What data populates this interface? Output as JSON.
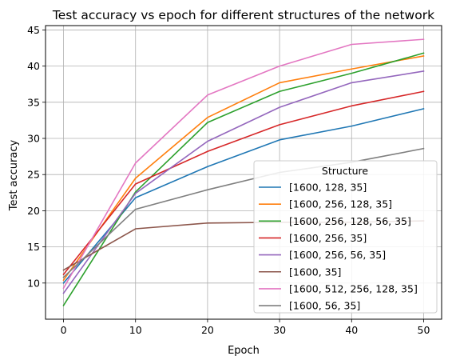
{
  "chart_data": {
    "type": "line",
    "title": "Test accuracy vs epoch for different structures of the network",
    "xlabel": "Epoch",
    "ylabel": "Test accuracy",
    "x": [
      0,
      10,
      20,
      30,
      40,
      50
    ],
    "xticks": [
      "0",
      "10",
      "20",
      "30",
      "40",
      "50"
    ],
    "yticks": [
      "10",
      "15",
      "20",
      "25",
      "30",
      "35",
      "40",
      "45"
    ],
    "xlim": [
      -2.5,
      52.5
    ],
    "ylim": [
      5.0,
      45.6
    ],
    "grid": true,
    "legend": {
      "title": "Structure",
      "placement": "bottom-right"
    },
    "series": [
      {
        "name": "[1600, 128, 35]",
        "color": "#1f77b4",
        "values": [
          10.0,
          21.8,
          26.1,
          29.8,
          31.7,
          34.1
        ]
      },
      {
        "name": "[1600, 256, 128, 35]",
        "color": "#ff7f0e",
        "values": [
          10.4,
          24.5,
          32.9,
          37.7,
          39.6,
          41.4
        ]
      },
      {
        "name": "[1600, 256, 128, 56, 35]",
        "color": "#2ca02c",
        "values": [
          6.9,
          22.6,
          32.2,
          36.5,
          39.0,
          41.8
        ]
      },
      {
        "name": "[1600, 256, 35]",
        "color": "#d62728",
        "values": [
          11.2,
          23.7,
          28.2,
          31.9,
          34.5,
          36.5
        ]
      },
      {
        "name": "[1600, 256, 56, 35]",
        "color": "#9467bd",
        "values": [
          8.6,
          22.4,
          29.6,
          34.3,
          37.7,
          39.3
        ]
      },
      {
        "name": "[1600, 35]",
        "color": "#8c564b",
        "values": [
          11.8,
          17.5,
          18.3,
          18.4,
          18.4,
          18.6
        ]
      },
      {
        "name": "[1600, 512, 256, 128, 35]",
        "color": "#e377c2",
        "values": [
          9.3,
          26.6,
          36.0,
          40.0,
          43.0,
          43.7
        ]
      },
      {
        "name": "[1600, 56, 35]",
        "color": "#7f7f7f",
        "values": [
          10.8,
          20.2,
          22.9,
          25.3,
          26.7,
          28.6
        ]
      }
    ]
  }
}
